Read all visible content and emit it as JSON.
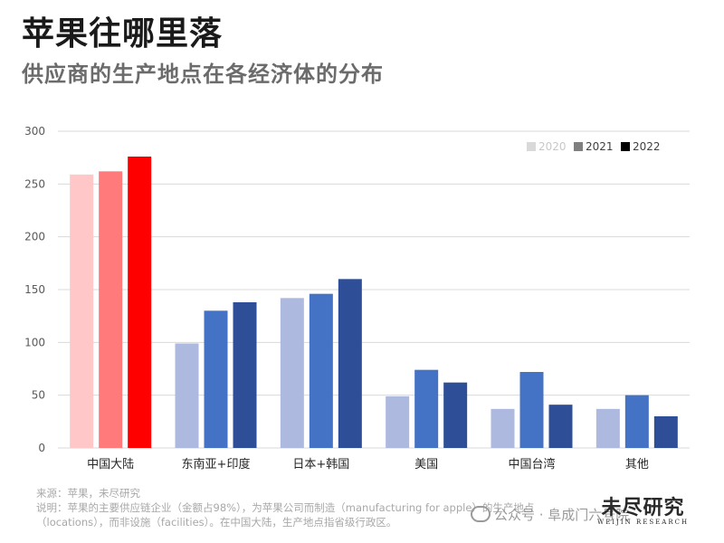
{
  "title": "苹果往哪里落",
  "subtitle": "供应商的生产地点在各经济体的分布",
  "chart_data": {
    "type": "bar",
    "categories": [
      "中国大陆",
      "东南亚+印度",
      "日本+韩国",
      "美国",
      "中国台湾",
      "其他"
    ],
    "series": [
      {
        "name": "2020",
        "values": [
          259,
          99,
          142,
          49,
          37,
          37
        ]
      },
      {
        "name": "2021",
        "values": [
          262,
          130,
          146,
          74,
          72,
          50
        ]
      },
      {
        "name": "2022",
        "values": [
          276,
          138,
          160,
          62,
          41,
          30
        ]
      }
    ],
    "ylim": [
      0,
      300
    ],
    "yticks": [
      0,
      50,
      100,
      150,
      200,
      250,
      300
    ],
    "grid": true,
    "legend_position": "top-right",
    "legend_swatch_colors": [
      "#d9d9d9",
      "#808080",
      "#000000"
    ],
    "colors": {
      "highlight_category": [
        "#ffc7c7",
        "#ff7a7a",
        "#ff0000"
      ],
      "other_categories": [
        "#aeb9df",
        "#4472c4",
        "#2e4f97"
      ]
    }
  },
  "footer": {
    "source": "来源：苹果，未尽研究",
    "note_line1": "说明：苹果的主要供应链企业（金额占98%），为苹果公司而制造（manufacturing for apple）的生产地点",
    "note_line2": "（locations），而非设施（facilities）。在中国大陆，生产地点指省级行政区。"
  },
  "wechat_label": "公众号 · 阜成门六号院",
  "logo": {
    "cn": "未尽研究",
    "en": "WEIJIN RESEARCH"
  }
}
